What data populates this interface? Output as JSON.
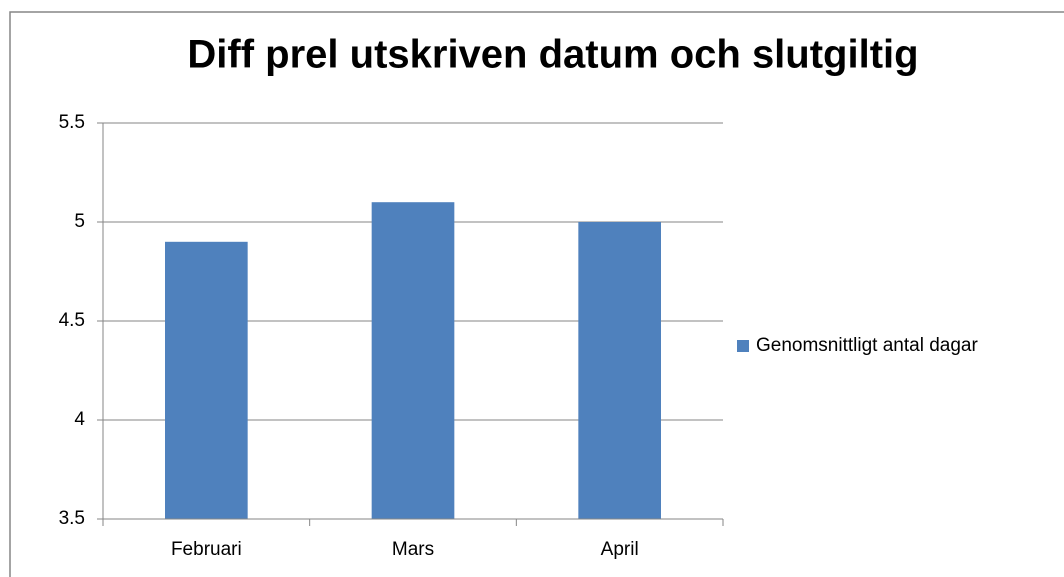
{
  "chart_data": {
    "type": "bar",
    "title": "Diff prel utskriven datum och slutgiltig",
    "categories": [
      "Februari",
      "Mars",
      "April"
    ],
    "series": [
      {
        "name": "Genomsnittligt antal dagar",
        "color": "#4f81bd",
        "values": [
          4.9,
          5.1,
          5.0
        ]
      }
    ],
    "ylim": [
      3.5,
      5.5
    ],
    "yticks": [
      3.5,
      4,
      4.5,
      5,
      5.5
    ],
    "grid": true,
    "legend": "right"
  }
}
